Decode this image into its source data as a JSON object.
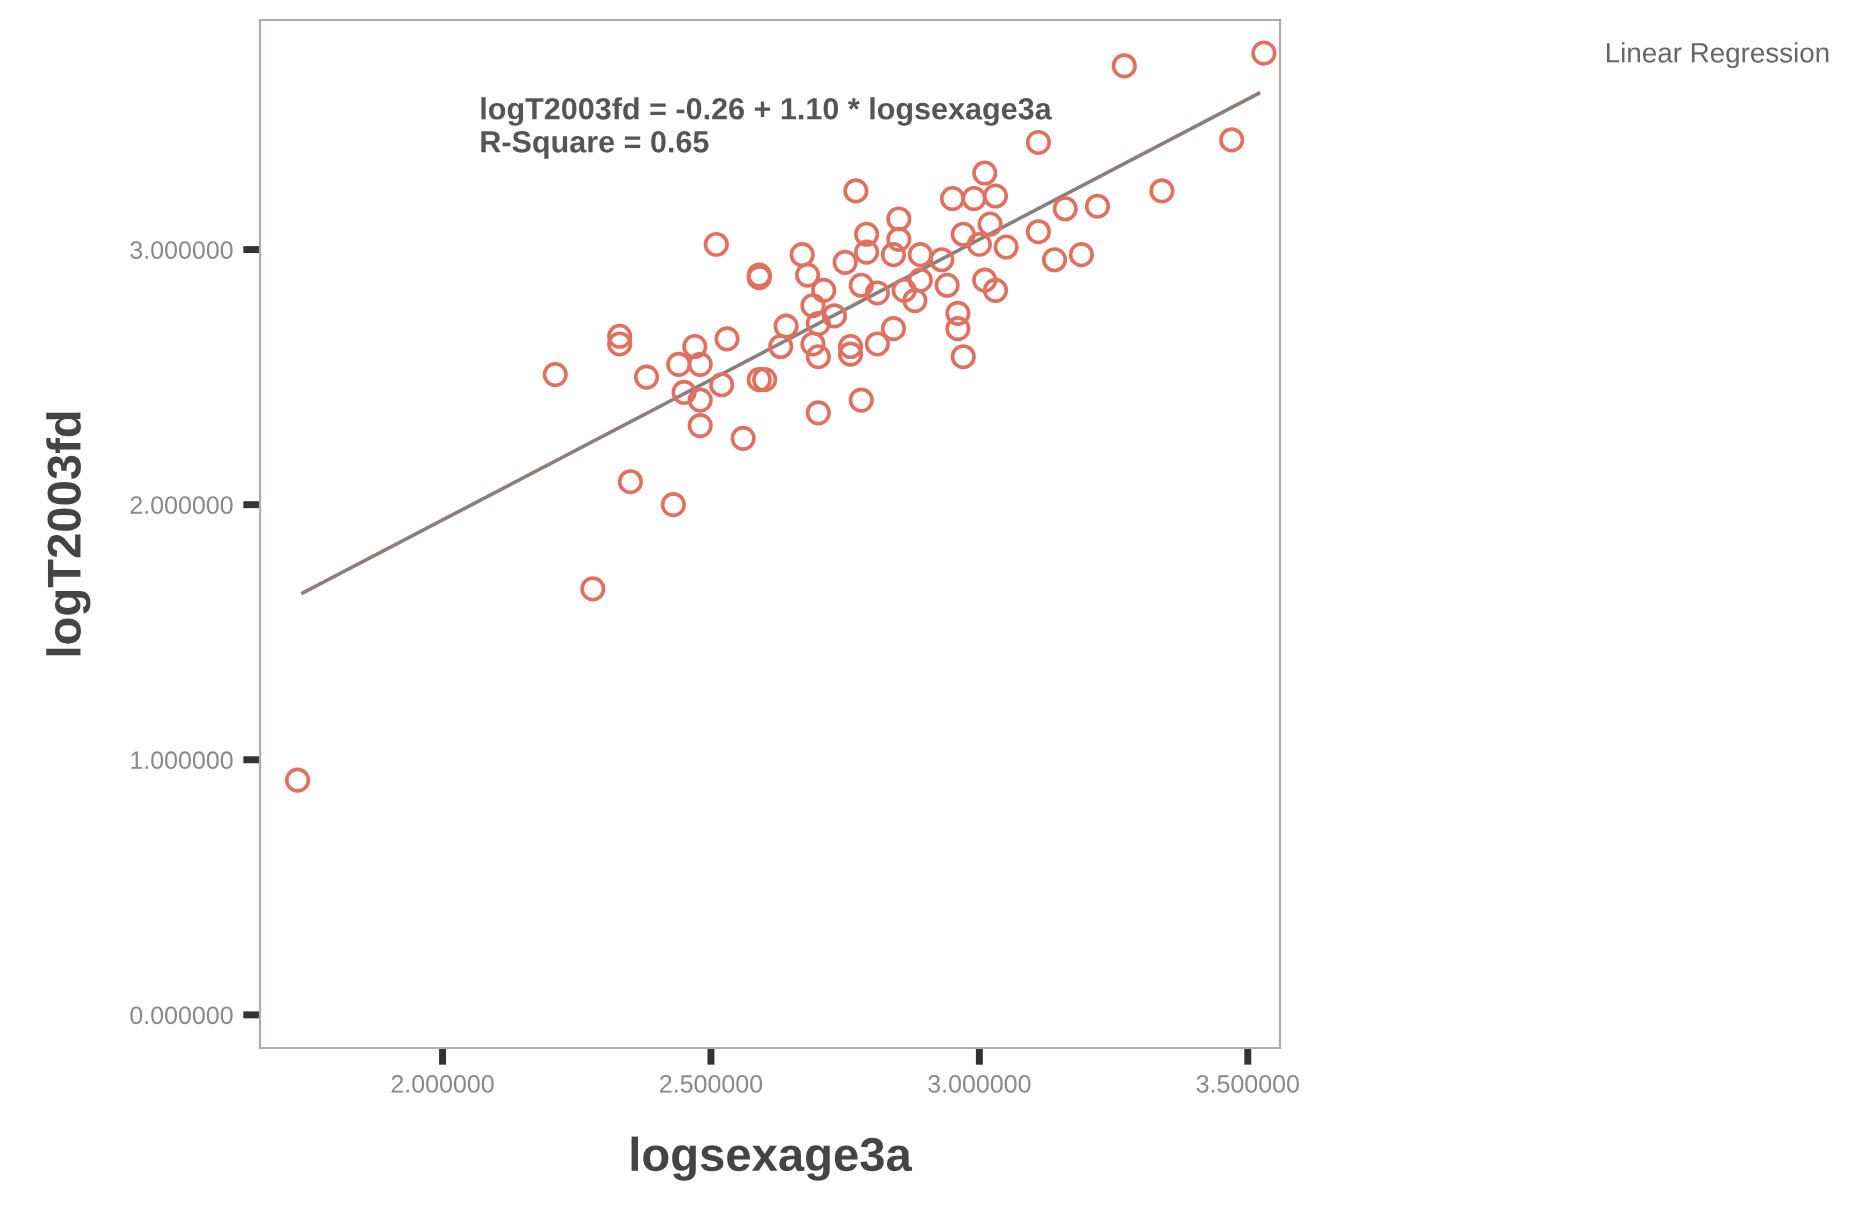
{
  "chart_data": {
    "type": "scatter",
    "xlabel": "logsexage3a",
    "ylabel": "logT2003fd",
    "xlim": [
      1.66,
      3.56
    ],
    "ylim": [
      -0.13,
      3.9
    ],
    "xticks": [
      {
        "value": 2.0,
        "label": "2.000000"
      },
      {
        "value": 2.5,
        "label": "2.500000"
      },
      {
        "value": 3.0,
        "label": "3.000000"
      },
      {
        "value": 3.5,
        "label": "3.500000"
      }
    ],
    "yticks": [
      {
        "value": 0.0,
        "label": "0.000000"
      },
      {
        "value": 1.0,
        "label": "1.000000"
      },
      {
        "value": 2.0,
        "label": "2.000000"
      },
      {
        "value": 3.0,
        "label": "3.000000"
      }
    ],
    "grid": false,
    "annotations": [
      "logT2003fd = -0.26 + 1.10 * logsexage3a\nR-Square = 0.65",
      "Linear Regression"
    ],
    "series": [
      {
        "marker": "circle",
        "color": "#e07060",
        "x": [
          1.73,
          2.28,
          2.51,
          2.59,
          2.33,
          2.33,
          2.21,
          2.38,
          2.44,
          2.47,
          2.53,
          2.48,
          2.52,
          2.45,
          2.48,
          2.59,
          2.48,
          2.56,
          2.35,
          2.43,
          3.27,
          3.53,
          3.47,
          3.34,
          2.77,
          3.11,
          3.01,
          2.95,
          2.99,
          3.03,
          3.16,
          3.22,
          3.11,
          3.02,
          3.05,
          2.97,
          3.0,
          3.14,
          3.19,
          3.01,
          3.03,
          2.96,
          2.96,
          2.97,
          2.85,
          2.79,
          2.85,
          2.84,
          2.79,
          2.89,
          2.93,
          2.67,
          2.68,
          2.75,
          2.71,
          2.78,
          2.81,
          2.86,
          2.89,
          2.94,
          2.88,
          2.69,
          2.64,
          2.7,
          2.73,
          2.63,
          2.69,
          2.7,
          2.76,
          2.76,
          2.81,
          2.84,
          2.6,
          2.7,
          2.78,
          2.59
        ],
        "values": [
          0.92,
          1.67,
          3.02,
          2.89,
          2.66,
          2.63,
          2.51,
          2.5,
          2.55,
          2.62,
          2.65,
          2.55,
          2.47,
          2.44,
          2.41,
          2.49,
          2.31,
          2.26,
          2.09,
          2.0,
          3.72,
          3.77,
          3.43,
          3.23,
          3.23,
          3.42,
          3.3,
          3.2,
          3.2,
          3.21,
          3.16,
          3.17,
          3.07,
          3.1,
          3.01,
          3.06,
          3.02,
          2.96,
          2.98,
          2.88,
          2.84,
          2.75,
          2.69,
          2.58,
          3.12,
          3.06,
          3.04,
          2.98,
          2.99,
          2.98,
          2.96,
          2.98,
          2.9,
          2.95,
          2.84,
          2.86,
          2.83,
          2.84,
          2.88,
          2.86,
          2.8,
          2.78,
          2.7,
          2.71,
          2.74,
          2.62,
          2.63,
          2.58,
          2.62,
          2.59,
          2.63,
          2.69,
          2.49,
          2.36,
          2.41,
          2.9
        ]
      },
      {
        "type": "line",
        "marker": "none",
        "line_style": "solid",
        "color": "#8a7f7a",
        "x": [
          1.74,
          3.52
        ],
        "values": [
          1.654,
          3.612
        ]
      }
    ]
  }
}
